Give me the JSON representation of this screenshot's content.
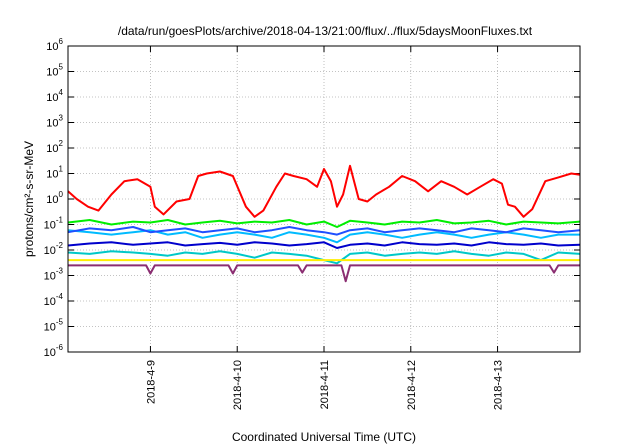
{
  "chart_data": {
    "type": "line",
    "title": "/data/run/goesPlots/archive/2018-04-13/21:00/flux/../flux/5daysMoonFluxes.txt",
    "xlabel": "Coordinated Universal Time (UTC)",
    "ylabel": "protons/cm²-s-sr-MeV",
    "yscale": "log",
    "ylim": [
      1e-06,
      1000000.0
    ],
    "xlim": [
      -0.95,
      4.95
    ],
    "x_ticks": [
      {
        "x": 0,
        "label": "2018-4-9"
      },
      {
        "x": 1,
        "label": "2018-4-10"
      },
      {
        "x": 2,
        "label": "2018-4-11"
      },
      {
        "x": 3,
        "label": "2018-4-12"
      },
      {
        "x": 4,
        "label": "2018-4-13"
      }
    ],
    "y_ticks": [
      {
        "exp": "-6"
      },
      {
        "exp": "-5"
      },
      {
        "exp": "-4"
      },
      {
        "exp": "-3"
      },
      {
        "exp": "-2"
      },
      {
        "exp": "-1"
      },
      {
        "exp": "0"
      },
      {
        "exp": "1"
      },
      {
        "exp": "2"
      },
      {
        "exp": "3"
      },
      {
        "exp": "4"
      },
      {
        "exp": "5"
      },
      {
        "exp": "6"
      }
    ],
    "tick_base": "10",
    "grid": true,
    "series": [
      {
        "color": "#ff0000",
        "x": [
          -0.95,
          -0.85,
          -0.72,
          -0.6,
          -0.45,
          -0.3,
          -0.15,
          0.0,
          0.05,
          0.15,
          0.3,
          0.45,
          0.55,
          0.65,
          0.8,
          0.95,
          1.1,
          1.2,
          1.3,
          1.45,
          1.55,
          1.65,
          1.8,
          1.92,
          2.0,
          2.08,
          2.15,
          2.22,
          2.3,
          2.4,
          2.5,
          2.6,
          2.75,
          2.9,
          3.05,
          3.2,
          3.35,
          3.5,
          3.65,
          3.8,
          3.95,
          4.05,
          4.12,
          4.2,
          4.3,
          4.4,
          4.55,
          4.7,
          4.85,
          4.95
        ],
        "y": [
          2.0,
          1.0,
          0.5,
          0.35,
          1.5,
          5.0,
          6.0,
          3.0,
          0.5,
          0.25,
          0.8,
          1.0,
          8.0,
          10.0,
          12.0,
          8.0,
          0.5,
          0.2,
          0.35,
          3.0,
          10.0,
          8.0,
          6.0,
          3.0,
          15.0,
          5.0,
          0.5,
          1.5,
          20.0,
          1.0,
          0.8,
          1.5,
          3.0,
          8.0,
          5.0,
          2.0,
          5.0,
          3.0,
          1.5,
          3.0,
          6.0,
          4.0,
          0.6,
          0.5,
          0.2,
          0.4,
          5.0,
          7.0,
          10.0,
          9.0
        ]
      },
      {
        "color": "#00ee00",
        "x": [
          -0.95,
          -0.7,
          -0.45,
          -0.2,
          0.0,
          0.2,
          0.4,
          0.6,
          0.8,
          1.0,
          1.2,
          1.4,
          1.6,
          1.8,
          2.0,
          2.15,
          2.3,
          2.5,
          2.7,
          2.9,
          3.1,
          3.3,
          3.5,
          3.7,
          3.9,
          4.1,
          4.3,
          4.5,
          4.7,
          4.95
        ],
        "y": [
          0.12,
          0.15,
          0.1,
          0.13,
          0.12,
          0.15,
          0.1,
          0.12,
          0.14,
          0.11,
          0.13,
          0.12,
          0.15,
          0.1,
          0.13,
          0.08,
          0.14,
          0.12,
          0.1,
          0.13,
          0.12,
          0.15,
          0.11,
          0.12,
          0.14,
          0.1,
          0.13,
          0.12,
          0.11,
          0.13
        ]
      },
      {
        "color": "#00bbff",
        "x": [
          -0.95,
          -0.7,
          -0.45,
          -0.2,
          0.0,
          0.2,
          0.4,
          0.6,
          0.8,
          1.0,
          1.2,
          1.4,
          1.6,
          1.8,
          2.0,
          2.15,
          2.3,
          2.5,
          2.7,
          2.9,
          3.1,
          3.3,
          3.5,
          3.7,
          3.9,
          4.1,
          4.3,
          4.5,
          4.7,
          4.95
        ],
        "y": [
          0.06,
          0.05,
          0.04,
          0.05,
          0.06,
          0.04,
          0.05,
          0.03,
          0.04,
          0.05,
          0.04,
          0.03,
          0.05,
          0.04,
          0.03,
          0.02,
          0.04,
          0.05,
          0.04,
          0.03,
          0.04,
          0.05,
          0.04,
          0.03,
          0.04,
          0.05,
          0.04,
          0.03,
          0.04,
          0.04
        ]
      },
      {
        "color": "#1f4fff",
        "x": [
          -0.95,
          -0.7,
          -0.45,
          -0.2,
          0.0,
          0.2,
          0.4,
          0.6,
          0.8,
          1.0,
          1.2,
          1.4,
          1.6,
          1.8,
          2.0,
          2.15,
          2.3,
          2.5,
          2.7,
          2.9,
          3.1,
          3.3,
          3.5,
          3.7,
          3.9,
          4.1,
          4.3,
          4.5,
          4.7,
          4.95
        ],
        "y": [
          0.05,
          0.07,
          0.06,
          0.08,
          0.05,
          0.06,
          0.07,
          0.05,
          0.06,
          0.07,
          0.05,
          0.06,
          0.08,
          0.06,
          0.05,
          0.04,
          0.06,
          0.07,
          0.05,
          0.06,
          0.07,
          0.06,
          0.05,
          0.07,
          0.06,
          0.05,
          0.07,
          0.06,
          0.05,
          0.06
        ]
      },
      {
        "color": "#0000cc",
        "x": [
          -0.95,
          -0.7,
          -0.45,
          -0.2,
          0.0,
          0.2,
          0.4,
          0.6,
          0.8,
          1.0,
          1.2,
          1.4,
          1.6,
          1.8,
          2.0,
          2.15,
          2.3,
          2.5,
          2.7,
          2.9,
          3.1,
          3.3,
          3.5,
          3.7,
          3.9,
          4.1,
          4.3,
          4.5,
          4.7,
          4.95
        ],
        "y": [
          0.015,
          0.018,
          0.02,
          0.016,
          0.018,
          0.02,
          0.015,
          0.017,
          0.019,
          0.016,
          0.02,
          0.018,
          0.015,
          0.017,
          0.02,
          0.012,
          0.016,
          0.018,
          0.015,
          0.02,
          0.017,
          0.016,
          0.018,
          0.015,
          0.02,
          0.017,
          0.016,
          0.018,
          0.015,
          0.016
        ]
      },
      {
        "color": "#00c8c8",
        "x": [
          -0.95,
          -0.7,
          -0.45,
          -0.2,
          0.0,
          0.2,
          0.4,
          0.6,
          0.8,
          1.0,
          1.2,
          1.4,
          1.6,
          1.8,
          2.0,
          2.15,
          2.3,
          2.5,
          2.7,
          2.9,
          3.1,
          3.3,
          3.5,
          3.7,
          3.9,
          4.1,
          4.3,
          4.5,
          4.7,
          4.95
        ],
        "y": [
          0.008,
          0.007,
          0.009,
          0.008,
          0.007,
          0.006,
          0.008,
          0.007,
          0.009,
          0.007,
          0.005,
          0.008,
          0.007,
          0.006,
          0.004,
          0.003,
          0.007,
          0.008,
          0.006,
          0.007,
          0.008,
          0.007,
          0.009,
          0.007,
          0.006,
          0.008,
          0.007,
          0.004,
          0.008,
          0.007
        ]
      },
      {
        "color": "#ffee00",
        "x": [
          -0.95,
          -0.5,
          0.0,
          0.5,
          1.0,
          1.5,
          2.0,
          2.5,
          3.0,
          3.5,
          4.0,
          4.5,
          4.95
        ],
        "y": [
          0.004,
          0.004,
          0.004,
          0.004,
          0.004,
          0.004,
          0.004,
          0.004,
          0.004,
          0.004,
          0.004,
          0.004,
          0.004
        ]
      },
      {
        "color": "#8b2e72",
        "x": [
          -0.95,
          -0.6,
          -0.3,
          -0.05,
          0.0,
          0.05,
          0.3,
          0.6,
          0.9,
          0.95,
          1.0,
          1.4,
          1.7,
          1.75,
          1.8,
          2.0,
          2.2,
          2.25,
          2.3,
          2.6,
          3.0,
          3.4,
          3.8,
          4.2,
          4.6,
          4.65,
          4.7,
          4.95
        ],
        "y": [
          0.0025,
          0.0025,
          0.0025,
          0.0025,
          0.0012,
          0.0025,
          0.0025,
          0.0025,
          0.0025,
          0.0012,
          0.0025,
          0.0025,
          0.0025,
          0.0013,
          0.0025,
          0.0025,
          0.0025,
          0.0006,
          0.0025,
          0.0025,
          0.0025,
          0.0025,
          0.0025,
          0.0025,
          0.0025,
          0.0013,
          0.0025,
          0.0025
        ]
      }
    ]
  }
}
